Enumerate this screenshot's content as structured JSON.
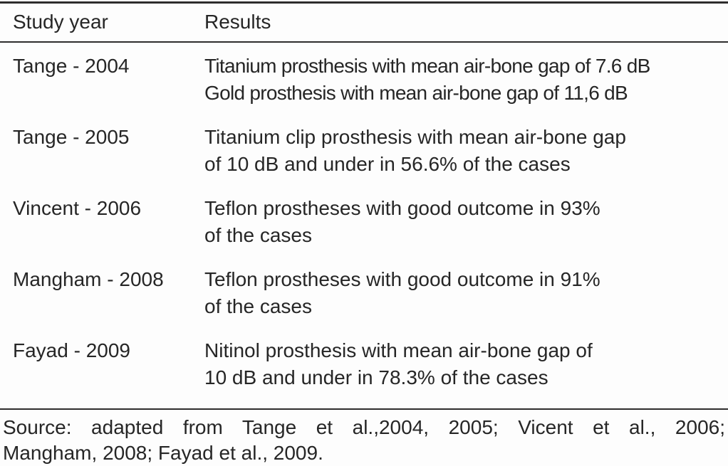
{
  "colors": {
    "text": "#262626",
    "rule": "#2e2d2d",
    "background": "#fdfdfd"
  },
  "table": {
    "header": {
      "study_year": "Study year",
      "results": "Results"
    },
    "rows": [
      {
        "study_year": "Tange - 2004",
        "result_lines": [
          "Titanium prosthesis with mean air-bone gap of 7.6 dB",
          "Gold prosthesis with mean air-bone gap of 11,6 dB"
        ]
      },
      {
        "study_year": "Tange - 2005",
        "result_lines": [
          "Titanium clip prosthesis with mean air-bone gap",
          "of 10 dB and under in 56.6% of the cases"
        ]
      },
      {
        "study_year": "Vincent - 2006",
        "result_lines": [
          "Teflon prostheses with good outcome in 93%",
          "of the cases"
        ]
      },
      {
        "study_year": "Mangham - 2008",
        "result_lines": [
          "Teflon prostheses with good outcome in 91%",
          "of the cases"
        ]
      },
      {
        "study_year": "Fayad - 2009",
        "result_lines": [
          "Nitinol prosthesis with mean air-bone gap of",
          "10 dB and under in 78.3% of the cases"
        ]
      }
    ],
    "source_lines": [
      "Source: adapted from Tange et al.,2004, 2005; Vicent et al., 2006;",
      "Mangham, 2008; Fayad et al., 2009."
    ]
  }
}
